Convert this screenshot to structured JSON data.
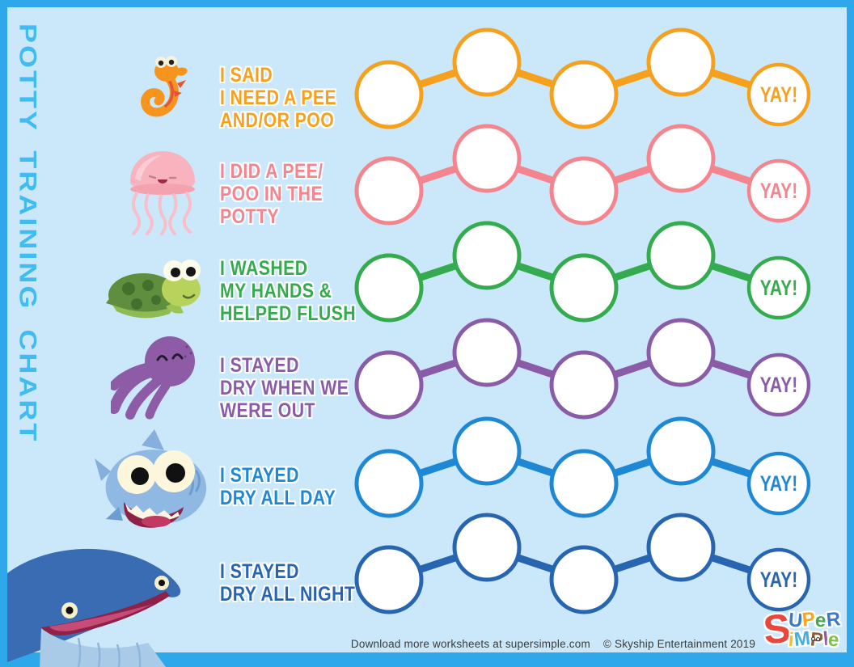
{
  "title": "POTTY TRAINING CHART",
  "colors": {
    "background": "#CBE8FA",
    "frame": "#2FA7EB",
    "title": "#41BCF2"
  },
  "rows": [
    {
      "icon": "seahorse-icon",
      "color": "#F6A11E",
      "lines": [
        "I SAID",
        "I NEED A PEE",
        "AND/OR POO"
      ],
      "step_count": 4,
      "reward_label": "YAY!"
    },
    {
      "icon": "jellyfish-icon",
      "color": "#F4858F",
      "lines": [
        "I DID A PEE/",
        "POO IN THE",
        "POTTY"
      ],
      "step_count": 4,
      "reward_label": "YAY!"
    },
    {
      "icon": "turtle-icon",
      "color": "#35AB4F",
      "lines": [
        "I WASHED",
        "MY HANDS &",
        "HELPED FLUSH"
      ],
      "step_count": 4,
      "reward_label": "YAY!"
    },
    {
      "icon": "octopus-icon",
      "color": "#8A5CA8",
      "lines": [
        "I STAYED",
        "DRY WHEN WE",
        "WERE OUT"
      ],
      "step_count": 4,
      "reward_label": "YAY!"
    },
    {
      "icon": "shark-icon",
      "color": "#1E88D5",
      "lines": [
        "I STAYED",
        "DRY ALL DAY"
      ],
      "step_count": 4,
      "reward_label": "YAY!"
    },
    {
      "icon": "whale-icon",
      "color": "#2765B0",
      "lines": [
        "I STAYED",
        "DRY ALL NIGHT"
      ],
      "step_count": 4,
      "reward_label": "YAY!"
    }
  ],
  "footer": {
    "download_text": "Download more worksheets at supersimple.com",
    "copyright": "© Skyship Entertainment 2019"
  },
  "logo": {
    "big_letter": {
      "char": "S",
      "color": "#E8473C"
    },
    "line1": [
      {
        "char": "U",
        "color": "#3D79C6"
      },
      {
        "char": "P",
        "color": "#F9A51F"
      },
      {
        "char": "e",
        "color": "#46A84C"
      },
      {
        "char": "R",
        "color": "#3D79C6"
      }
    ],
    "line2": [
      {
        "char": "i",
        "color": "#F2C02E"
      },
      {
        "char": "M",
        "color": "#45AEDF"
      },
      {
        "char": "P",
        "color": "#8C5F3A",
        "owl": true
      },
      {
        "char": "l",
        "color": "#8E5BA6"
      },
      {
        "char": "e",
        "color": "#7DC242"
      }
    ]
  }
}
